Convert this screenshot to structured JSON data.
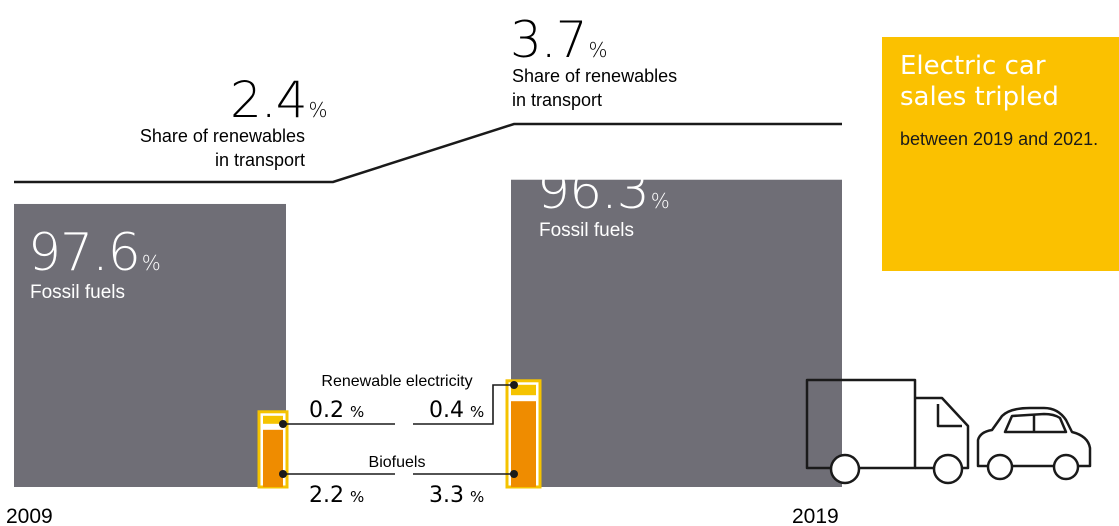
{
  "colors": {
    "fossil": "#6f6e76",
    "renewable_electricity": "#f5c300",
    "biofuels": "#ef8c00",
    "callout_bg": "#fbc100",
    "line": "#1a1a1a"
  },
  "chart_data": {
    "type": "bar",
    "categories": [
      "2009",
      "2019"
    ],
    "series": [
      {
        "name": "Fossil fuels",
        "values": [
          97.6,
          96.3
        ]
      },
      {
        "name": "Renewable electricity",
        "values": [
          0.2,
          0.4
        ]
      },
      {
        "name": "Biofuels",
        "values": [
          2.2,
          3.3
        ]
      }
    ],
    "renewable_share": [
      2.4,
      3.7
    ],
    "renewable_share_label_line1": "Share of renewables",
    "renewable_share_label_line2": "in transport",
    "unit": "%",
    "renewable_electricity_label": "Renewable electricity",
    "biofuels_label": "Biofuels"
  },
  "labels": {
    "fossil_2009_value": "97.6",
    "fossil_2019_value": "96.3",
    "fossil_label": "Fossil fuels",
    "share_2009_value": "2.4",
    "share_2019_value": "3.7",
    "renew_elec_2009": "0.2",
    "renew_elec_2019": "0.4",
    "biofuels_2009": "2.2",
    "biofuels_2019": "3.3",
    "unit": "%",
    "year_2009": "2009",
    "year_2019": "2019"
  },
  "callout": {
    "headline": "Electric car sales tripled",
    "subtext": "between 2019 and 2021."
  },
  "icons": [
    "truck-icon",
    "car-icon"
  ]
}
